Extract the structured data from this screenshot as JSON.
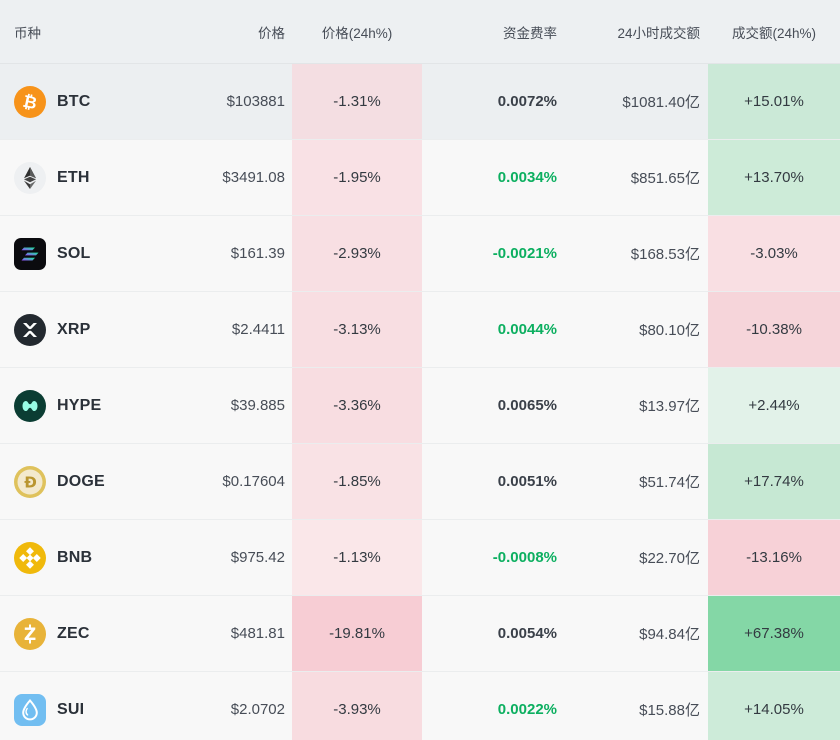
{
  "header": {
    "coin": "币种",
    "price": "价格",
    "price_24h": "价格(24h%)",
    "funding_rate": "资金费率",
    "volume_24h": "24小时成交额",
    "volume_change_24h": "成交额(24h%)"
  },
  "colors": {
    "green_text": "#0caf60",
    "dark_text": "#3a4049",
    "header_bg": "#edf0f2",
    "row_bg": "#f8f8f8",
    "highlight_row_bg": "#eceff1"
  },
  "chart_data": {
    "type": "table",
    "title": "",
    "columns": [
      "币种",
      "价格",
      "价格(24h%)",
      "资金费率",
      "24小时成交额",
      "成交额(24h%)"
    ],
    "rows": [
      [
        "BTC",
        "$103881",
        "-1.31%",
        "0.0072%",
        "$1081.40亿",
        "+15.01%"
      ],
      [
        "ETH",
        "$3491.08",
        "-1.95%",
        "0.0034%",
        "$851.65亿",
        "+13.70%"
      ],
      [
        "SOL",
        "$161.39",
        "-2.93%",
        "-0.0021%",
        "$168.53亿",
        "-3.03%"
      ],
      [
        "XRP",
        "$2.4411",
        "-3.13%",
        "0.0044%",
        "$80.10亿",
        "-10.38%"
      ],
      [
        "HYPE",
        "$39.885",
        "-3.36%",
        "0.0065%",
        "$13.97亿",
        "+2.44%"
      ],
      [
        "DOGE",
        "$0.17604",
        "-1.85%",
        "0.0051%",
        "$51.74亿",
        "+17.74%"
      ],
      [
        "BNB",
        "$975.42",
        "-1.13%",
        "-0.0008%",
        "$22.70亿",
        "-13.16%"
      ],
      [
        "ZEC",
        "$481.81",
        "-19.81%",
        "0.0054%",
        "$94.84亿",
        "+67.38%"
      ],
      [
        "SUI",
        "$2.0702",
        "-3.93%",
        "0.0022%",
        "$15.88亿",
        "+14.05%"
      ]
    ]
  },
  "rows": [
    {
      "symbol": "BTC",
      "icon": "btc-icon",
      "price": "$103881",
      "change_24h": "-1.31%",
      "change_24h_bg": "#f4dee2",
      "funding": "0.0072%",
      "funding_color": "dark",
      "volume": "$1081.40亿",
      "volume_change": "+15.01%",
      "volume_change_bg": "#cbe9d7",
      "row_bg": "#eceff1"
    },
    {
      "symbol": "ETH",
      "icon": "eth-icon",
      "price": "$3491.08",
      "change_24h": "-1.95%",
      "change_24h_bg": "#f9e1e5",
      "funding": "0.0034%",
      "funding_color": "green",
      "volume": "$851.65亿",
      "volume_change": "+13.70%",
      "volume_change_bg": "#cdebd8",
      "row_bg": "#f8f8f8"
    },
    {
      "symbol": "SOL",
      "icon": "sol-icon",
      "price": "$161.39",
      "change_24h": "-2.93%",
      "change_24h_bg": "#f8dfe3",
      "funding": "-0.0021%",
      "funding_color": "green",
      "volume": "$168.53亿",
      "volume_change": "-3.03%",
      "volume_change_bg": "#f9dfe3",
      "row_bg": "#f8f8f8"
    },
    {
      "symbol": "XRP",
      "icon": "xrp-icon",
      "price": "$2.4411",
      "change_24h": "-3.13%",
      "change_24h_bg": "#f8dee2",
      "funding": "0.0044%",
      "funding_color": "green",
      "volume": "$80.10亿",
      "volume_change": "-10.38%",
      "volume_change_bg": "#f6d5da",
      "row_bg": "#f8f8f8"
    },
    {
      "symbol": "HYPE",
      "icon": "hype-icon",
      "price": "$39.885",
      "change_24h": "-3.36%",
      "change_24h_bg": "#f8dde1",
      "funding": "0.0065%",
      "funding_color": "dark",
      "volume": "$13.97亿",
      "volume_change": "+2.44%",
      "volume_change_bg": "#e2f2e9",
      "row_bg": "#f8f8f8"
    },
    {
      "symbol": "DOGE",
      "icon": "doge-icon",
      "price": "$0.17604",
      "change_24h": "-1.85%",
      "change_24h_bg": "#f9e2e5",
      "funding": "0.0051%",
      "funding_color": "dark",
      "volume": "$51.74亿",
      "volume_change": "+17.74%",
      "volume_change_bg": "#c6e8d3",
      "row_bg": "#f8f8f8"
    },
    {
      "symbol": "BNB",
      "icon": "bnb-icon",
      "price": "$975.42",
      "change_24h": "-1.13%",
      "change_24h_bg": "#fae7e9",
      "funding": "-0.0008%",
      "funding_color": "green",
      "volume": "$22.70亿",
      "volume_change": "-13.16%",
      "volume_change_bg": "#f7d1d7",
      "row_bg": "#f8f8f8"
    },
    {
      "symbol": "ZEC",
      "icon": "zec-icon",
      "price": "$481.81",
      "change_24h": "-19.81%",
      "change_24h_bg": "#f7cdd4",
      "funding": "0.0054%",
      "funding_color": "dark",
      "volume": "$94.84亿",
      "volume_change": "+67.38%",
      "volume_change_bg": "#84d7a6",
      "row_bg": "#f8f8f8"
    },
    {
      "symbol": "SUI",
      "icon": "sui-icon",
      "price": "$2.0702",
      "change_24h": "-3.93%",
      "change_24h_bg": "#f8dce0",
      "funding": "0.0022%",
      "funding_color": "green",
      "volume": "$15.88亿",
      "volume_change": "+14.05%",
      "volume_change_bg": "#cdebd9",
      "row_bg": "#f8f8f8"
    }
  ]
}
